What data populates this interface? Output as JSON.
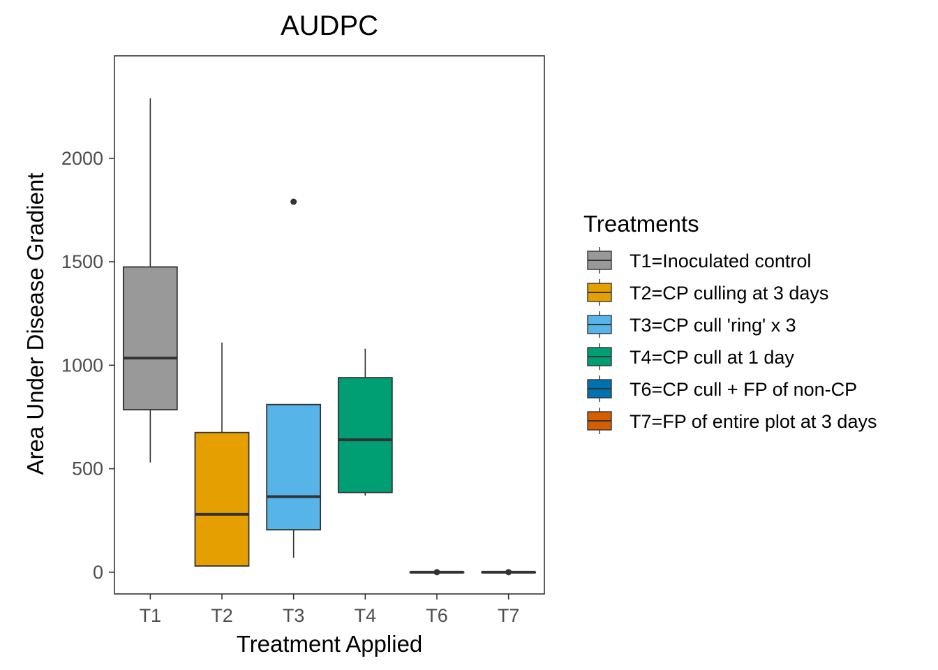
{
  "chart_data": {
    "type": "boxplot",
    "title": "AUDPC",
    "xlabel": "Treatment Applied",
    "ylabel": "Area Under Disease Gradient",
    "ylim": [
      -105,
      2495
    ],
    "y_ticks": [
      0,
      500,
      1000,
      1500,
      2000
    ],
    "grid": false,
    "legend": {
      "title": "Treatments",
      "placement": "right",
      "entries": [
        {
          "label": "T1=Inoculated control",
          "color": "#999999"
        },
        {
          "label": "T2=CP culling at 3 days",
          "color": "#E69F00"
        },
        {
          "label": "T3=CP cull 'ring' x 3",
          "color": "#56B4E9"
        },
        {
          "label": "T4=CP cull at 1 day",
          "color": "#009E73"
        },
        {
          "label": "T6=CP cull + FP of non-CP",
          "color": "#0072B2"
        },
        {
          "label": "T7=FP of entire plot at 3 days",
          "color": "#D55E00"
        }
      ]
    },
    "categories": [
      "T1",
      "T2",
      "T3",
      "T4",
      "T6",
      "T7"
    ],
    "boxes": [
      {
        "category": "T1",
        "color": "#999999",
        "min": 530,
        "q1": 785,
        "median": 1035,
        "q3": 1475,
        "max": 2290,
        "outliers": []
      },
      {
        "category": "T2",
        "color": "#E69F00",
        "min": 30,
        "q1": 30,
        "median": 280,
        "q3": 675,
        "max": 1110,
        "outliers": []
      },
      {
        "category": "T3",
        "color": "#56B4E9",
        "min": 70,
        "q1": 205,
        "median": 365,
        "q3": 810,
        "max": 810,
        "outliers": [
          1790
        ]
      },
      {
        "category": "T4",
        "color": "#009E73",
        "min": 370,
        "q1": 385,
        "median": 640,
        "q3": 940,
        "max": 1080,
        "outliers": []
      },
      {
        "category": "T6",
        "color": "#0072B2",
        "min": 0,
        "q1": 0,
        "median": 0,
        "q3": 0,
        "max": 0,
        "outliers": [
          0
        ]
      },
      {
        "category": "T7",
        "color": "#D55E00",
        "min": 0,
        "q1": 0,
        "median": 0,
        "q3": 0,
        "max": 0,
        "outliers": [
          0
        ]
      }
    ]
  }
}
